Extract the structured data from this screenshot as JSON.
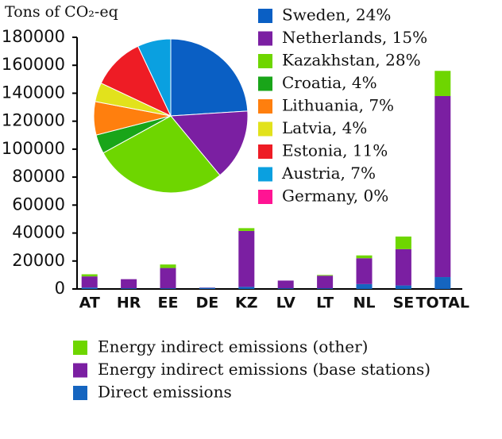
{
  "chart_data": [
    {
      "type": "bar",
      "stacked": true,
      "ylabel": "Tons of CO₂-eq",
      "categories": [
        "AT",
        "HR",
        "EE",
        "DE",
        "KZ",
        "LV",
        "LT",
        "NL",
        "SE",
        "TOTAL"
      ],
      "series": [
        {
          "name": "Direct emissions",
          "color": "#1565c0",
          "values": [
            1000,
            500,
            500,
            800,
            1500,
            500,
            500,
            3500,
            2500,
            8500
          ]
        },
        {
          "name": "Energy indirect emissions (base stations)",
          "color": "#7b1fa2",
          "values": [
            8000,
            6500,
            14500,
            200,
            40000,
            5500,
            9000,
            18500,
            26000,
            129500
          ]
        },
        {
          "name": "Energy indirect emissions (other)",
          "color": "#6ed600",
          "values": [
            1500,
            0,
            2500,
            0,
            2000,
            0,
            500,
            2000,
            9000,
            18000
          ]
        }
      ],
      "ylim": [
        0,
        180000
      ],
      "yticks": [
        0,
        20000,
        40000,
        60000,
        80000,
        100000,
        120000,
        140000,
        160000,
        180000
      ]
    },
    {
      "type": "pie",
      "categories": [
        "Sweden, 24%",
        "Netherlands, 15%",
        "Kazakhstan, 28%",
        "Croatia, 4%",
        "Lithuania, 7%",
        "Latvia, 4%",
        "Estonia, 11%",
        "Austria, 7%",
        "Germany, 0%"
      ],
      "values": [
        24,
        15,
        28,
        4,
        7,
        4,
        11,
        7,
        0
      ],
      "colors": [
        "#0a5fc4",
        "#7b1fa2",
        "#6ed600",
        "#19a519",
        "#ff7f0e",
        "#e2e21c",
        "#ee1c25",
        "#0aa0e0",
        "#ff1493"
      ]
    }
  ]
}
